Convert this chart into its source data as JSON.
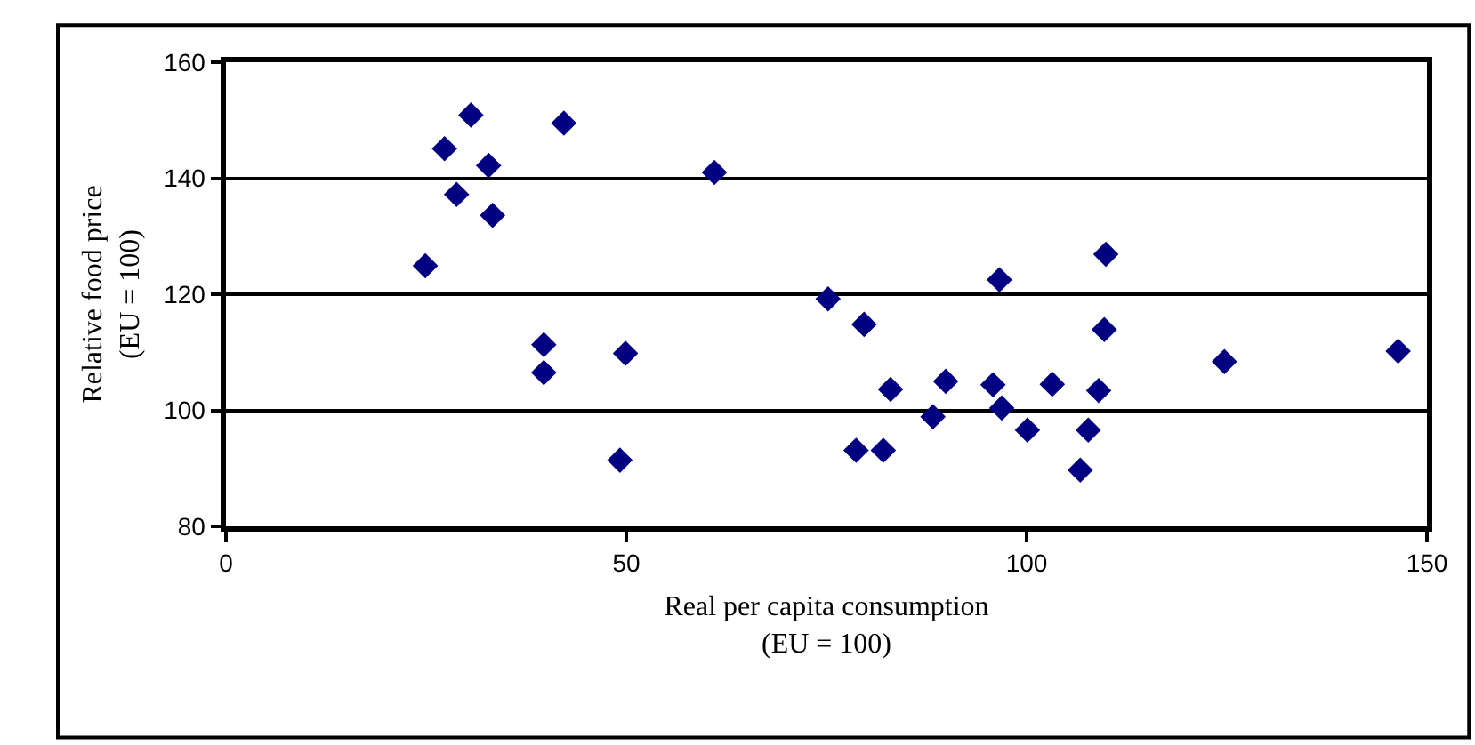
{
  "chart_data": {
    "type": "scatter",
    "xlabel": "Real per capita consumption\n(EU = 100)",
    "ylabel": "Relative food price\n(EU = 100)",
    "xlim": [
      0,
      150
    ],
    "xticks": [
      0,
      50,
      100,
      150
    ],
    "ylim": [
      80,
      160
    ],
    "yticks": [
      80,
      100,
      120,
      140,
      160
    ],
    "grid": "y",
    "legend": false,
    "marker": "diamond",
    "x": [
      24.9,
      27.3,
      28.8,
      30.6,
      32.8,
      33.3,
      42.2,
      39.7,
      39.7,
      49.9,
      49.2,
      61.0,
      75.2,
      79.7,
      83.0,
      78.7,
      82.1,
      88.3,
      89.9,
      95.8,
      96.6,
      96.9,
      100.1,
      103.2,
      106.7,
      107.7,
      109.0,
      109.7,
      109.9,
      124.7,
      146.4
    ],
    "series": [
      {
        "color": "#000080",
        "values": [
          124.9,
          145.1,
          137.2,
          150.9,
          142.2,
          133.6,
          149.5,
          111.3,
          106.5,
          109.8,
          91.4,
          141.0,
          119.2,
          114.8,
          103.6,
          93.1,
          93.1,
          98.9,
          105.0,
          104.4,
          122.5,
          100.4,
          96.6,
          104.5,
          89.7,
          96.6,
          103.4,
          113.9,
          126.9,
          108.4,
          110.2
        ]
      }
    ]
  }
}
